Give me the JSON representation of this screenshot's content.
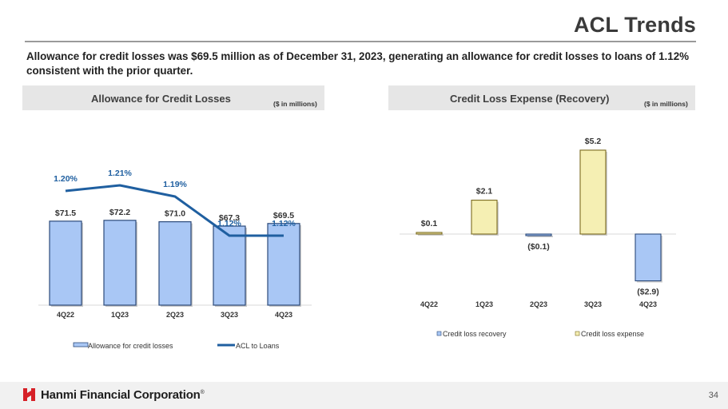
{
  "header": {
    "title": "ACL Trends",
    "subtitle": "Allowance for credit losses was $69.5 million as of December 31, 2023, generating an allowance for credit losses to loans of 1.12% consistent with the prior quarter."
  },
  "panels": {
    "left": {
      "title": "Allowance for Credit Losses",
      "unit": "($ in millions)"
    },
    "right": {
      "title": "Credit Loss Expense (Recovery)",
      "unit": "($ in millions)"
    }
  },
  "colors": {
    "bar_fill": "#a9c7f5",
    "bar_edge": "#2c4a7a",
    "acl_line": "#1f5fa0",
    "ratio_label": "#1f5fa0",
    "expense_fill": "#f5efb3",
    "expense_edge": "#7a6a1e"
  },
  "chart_data": [
    {
      "type": "bar",
      "title": "Allowance for Credit Losses",
      "categories": [
        "4Q22",
        "1Q23",
        "2Q23",
        "3Q23",
        "4Q23"
      ],
      "series": [
        {
          "name": "Allowance for credit losses",
          "type": "bar",
          "values": [
            71.5,
            72.2,
            71.0,
            67.3,
            69.5
          ],
          "labels": [
            "$71.5",
            "$72.2",
            "$71.0",
            "$67.3",
            "$69.5"
          ]
        },
        {
          "name": "ACL to Loans",
          "type": "line",
          "values": [
            1.2,
            1.21,
            1.19,
            1.12,
            1.12
          ],
          "labels": [
            "1.20%",
            "1.21%",
            "1.19%",
            "1.12%",
            "1.12%"
          ]
        }
      ],
      "legend": {
        "position": "bottom",
        "entries": [
          "Allowance for credit losses",
          "ACL to Loans"
        ]
      },
      "ylim": [
        0,
        75
      ],
      "grid": false
    },
    {
      "type": "bar",
      "title": "Credit Loss Expense (Recovery)",
      "categories": [
        "4Q22",
        "1Q23",
        "2Q23",
        "3Q23",
        "4Q23"
      ],
      "values": [
        0.1,
        2.1,
        -0.1,
        5.2,
        -2.9
      ],
      "labels": [
        "$0.1",
        "$2.1",
        "($0.1)",
        "$5.2",
        "($2.9)"
      ],
      "series_kind": [
        "expense",
        "expense",
        "recovery",
        "expense",
        "recovery"
      ],
      "legend": {
        "position": "bottom",
        "entries": [
          "Credit loss recovery",
          "Credit loss expense"
        ]
      },
      "ylim": [
        -3,
        5.5
      ],
      "grid": false
    }
  ],
  "footer": {
    "company": "Hanmi Financial Corporation",
    "trademark": "®",
    "page": "34"
  }
}
